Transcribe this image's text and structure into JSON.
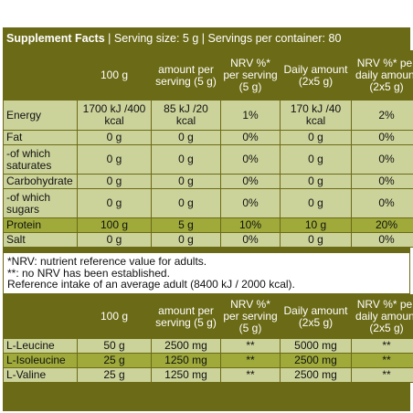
{
  "header": {
    "title": "Supplement Facts",
    "serving": "| Serving size: 5 g | Servings per container: 80"
  },
  "table1": {
    "columns": [
      "",
      "100 g",
      "amount per serving (5 g)",
      "NRV %* per serving (5 g)",
      "Daily amount (2x5 g)",
      "NRV %* per daily amount (2x5 g)"
    ],
    "rows": [
      [
        "Energy",
        "1700 kJ /400 kcal",
        "85 kJ /20 kcal",
        "1%",
        "170 kJ /40 kcal",
        "2%"
      ],
      [
        "Fat",
        "0 g",
        "0 g",
        "0%",
        "0 g",
        "0%"
      ],
      [
        "-of which saturates",
        "0 g",
        "0 g",
        "0%",
        "0 g",
        "0%"
      ],
      [
        "Carbohydrate",
        "0 g",
        "0 g",
        "0%",
        "0 g",
        "0%"
      ],
      [
        "-of which sugars",
        "0 g",
        "0 g",
        "0%",
        "0 g",
        "0%"
      ],
      [
        "Protein",
        "100 g",
        "5 g",
        "10%",
        "10 g",
        "20%"
      ],
      [
        "Salt",
        "0 g",
        "0 g",
        "0%",
        "0 g",
        "0%"
      ]
    ]
  },
  "notes": [
    "*NRV: nutrient reference value for adults.",
    "**: no NRV has been established.",
    "Reference intake of an average adult (8400 kJ / 2000 kcal)."
  ],
  "table2": {
    "columns": [
      "",
      "100 g",
      "amount per serving (5 g)",
      "NRV %* per serving (5 g)",
      "Daily amount (2x5 g)",
      "NRV %* per daily amount (2x5 g)"
    ],
    "rows": [
      [
        "L-Leucine",
        "50 g",
        "2500 mg",
        "**",
        "5000 mg",
        "**"
      ],
      [
        "L-Isoleucine",
        "25 g",
        "1250 mg",
        "**",
        "2500 mg",
        "**"
      ],
      [
        "L-Valine",
        "25 g",
        "1250 mg",
        "**",
        "2500 mg",
        "**"
      ]
    ]
  },
  "colors": {
    "dark_olive": "#6b6a16",
    "light_row": "#ccd39a",
    "mid_row": "#9faa3b"
  }
}
